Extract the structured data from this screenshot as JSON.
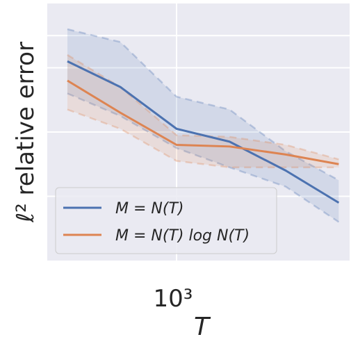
{
  "chart_data": {
    "type": "line",
    "xlabel": "T",
    "ylabel": "ℓ² relative error",
    "x_scale": "log",
    "x_tick_label": "10³",
    "grid": true,
    "legend_position": "lower-left",
    "x": [
      500,
      700,
      1000,
      1400,
      2000,
      2800
    ],
    "series": [
      {
        "name": "M = N(T)",
        "color": "#4c72b0",
        "values": [
          0.72,
          0.64,
          0.51,
          0.47,
          0.38,
          0.28
        ],
        "lower": [
          0.62,
          0.55,
          0.45,
          0.39,
          0.33,
          0.22
        ],
        "upper": [
          0.82,
          0.78,
          0.61,
          0.57,
          0.44,
          0.35
        ]
      },
      {
        "name": "M = N(T) log N(T)",
        "color": "#dd8452",
        "values": [
          0.66,
          0.56,
          0.46,
          0.455,
          0.43,
          0.4
        ],
        "lower": [
          0.57,
          0.51,
          0.41,
          0.39,
          0.39,
          0.39
        ],
        "upper": [
          0.74,
          0.64,
          0.49,
          0.485,
          0.46,
          0.415
        ]
      }
    ],
    "ylim": [
      0.1,
      0.9
    ],
    "xlim": [
      440,
      3000
    ]
  }
}
